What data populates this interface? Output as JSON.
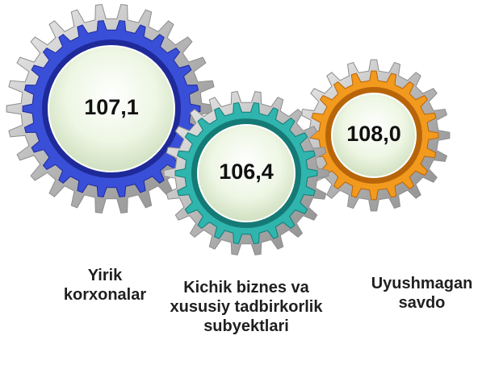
{
  "gears": [
    {
      "value": "107,1",
      "label": "Yirik korxonalar"
    },
    {
      "value": "106,4",
      "label": "Kichik biznes va xususiy tadbirkorlik subyektlari"
    },
    {
      "value": "108,0",
      "label": "Uyushmagan savdo"
    }
  ]
}
